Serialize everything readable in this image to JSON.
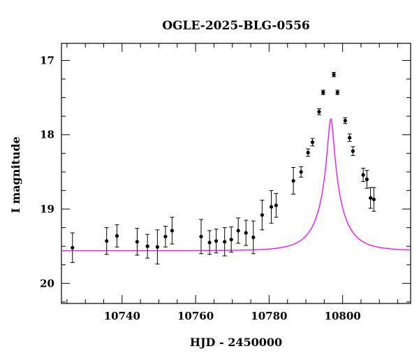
{
  "chart_data": {
    "type": "scatter",
    "title": "OGLE-2025-BLG-0556",
    "xlabel": "HJD - 2450000",
    "ylabel": "I magnitude",
    "xlim": [
      10723.5,
      10818.5
    ],
    "ylim": [
      20.27,
      16.77
    ],
    "y_inverted": true,
    "x_ticks": [
      10740,
      10760,
      10780,
      10800
    ],
    "x_minor_step": 5,
    "y_ticks": [
      17,
      18,
      19,
      20
    ],
    "y_minor_step": 0.25,
    "grid": false,
    "colors": {
      "points": "#000000",
      "model": "#ff00ff"
    },
    "series": [
      {
        "kind": "points-with-errorbars",
        "points": [
          {
            "x": 10726.5,
            "y": 19.52,
            "err": 0.2
          },
          {
            "x": 10735.8,
            "y": 19.43,
            "err": 0.18
          },
          {
            "x": 10738.6,
            "y": 19.36,
            "err": 0.15
          },
          {
            "x": 10744.1,
            "y": 19.44,
            "err": 0.18
          },
          {
            "x": 10746.9,
            "y": 19.5,
            "err": 0.16
          },
          {
            "x": 10749.6,
            "y": 19.51,
            "err": 0.23
          },
          {
            "x": 10751.8,
            "y": 19.37,
            "err": 0.14
          },
          {
            "x": 10753.6,
            "y": 19.29,
            "err": 0.18
          },
          {
            "x": 10761.5,
            "y": 19.37,
            "err": 0.23
          },
          {
            "x": 10763.8,
            "y": 19.45,
            "err": 0.16
          },
          {
            "x": 10765.6,
            "y": 19.43,
            "err": 0.16
          },
          {
            "x": 10767.9,
            "y": 19.44,
            "err": 0.19
          },
          {
            "x": 10769.7,
            "y": 19.41,
            "err": 0.17
          },
          {
            "x": 10771.6,
            "y": 19.29,
            "err": 0.17
          },
          {
            "x": 10773.7,
            "y": 19.32,
            "err": 0.17
          },
          {
            "x": 10775.7,
            "y": 19.38,
            "err": 0.22
          },
          {
            "x": 10778.1,
            "y": 19.08,
            "err": 0.2
          },
          {
            "x": 10780.6,
            "y": 18.97,
            "err": 0.22
          },
          {
            "x": 10781.9,
            "y": 18.95,
            "err": 0.16
          },
          {
            "x": 10786.6,
            "y": 18.62,
            "err": 0.18
          },
          {
            "x": 10788.7,
            "y": 18.5,
            "err": 0.07
          },
          {
            "x": 10790.6,
            "y": 18.24,
            "err": 0.05
          },
          {
            "x": 10791.8,
            "y": 18.1,
            "err": 0.05
          },
          {
            "x": 10793.6,
            "y": 17.69,
            "err": 0.04
          },
          {
            "x": 10794.7,
            "y": 17.43,
            "err": 0.03
          },
          {
            "x": 10797.6,
            "y": 17.19,
            "err": 0.03
          },
          {
            "x": 10798.6,
            "y": 17.43,
            "err": 0.03
          },
          {
            "x": 10800.7,
            "y": 17.81,
            "err": 0.04
          },
          {
            "x": 10801.9,
            "y": 18.04,
            "err": 0.05
          },
          {
            "x": 10802.8,
            "y": 18.22,
            "err": 0.06
          },
          {
            "x": 10805.6,
            "y": 18.54,
            "err": 0.09
          },
          {
            "x": 10806.6,
            "y": 18.6,
            "err": 0.12
          },
          {
            "x": 10807.6,
            "y": 18.85,
            "err": 0.14
          },
          {
            "x": 10808.5,
            "y": 18.87,
            "err": 0.16
          }
        ]
      },
      {
        "kind": "model-curve",
        "model": {
          "baseline": 19.56,
          "t0": 10796.8,
          "tE": 7.4,
          "u0": 0.1087,
          "fs": 0.5
        }
      }
    ]
  }
}
